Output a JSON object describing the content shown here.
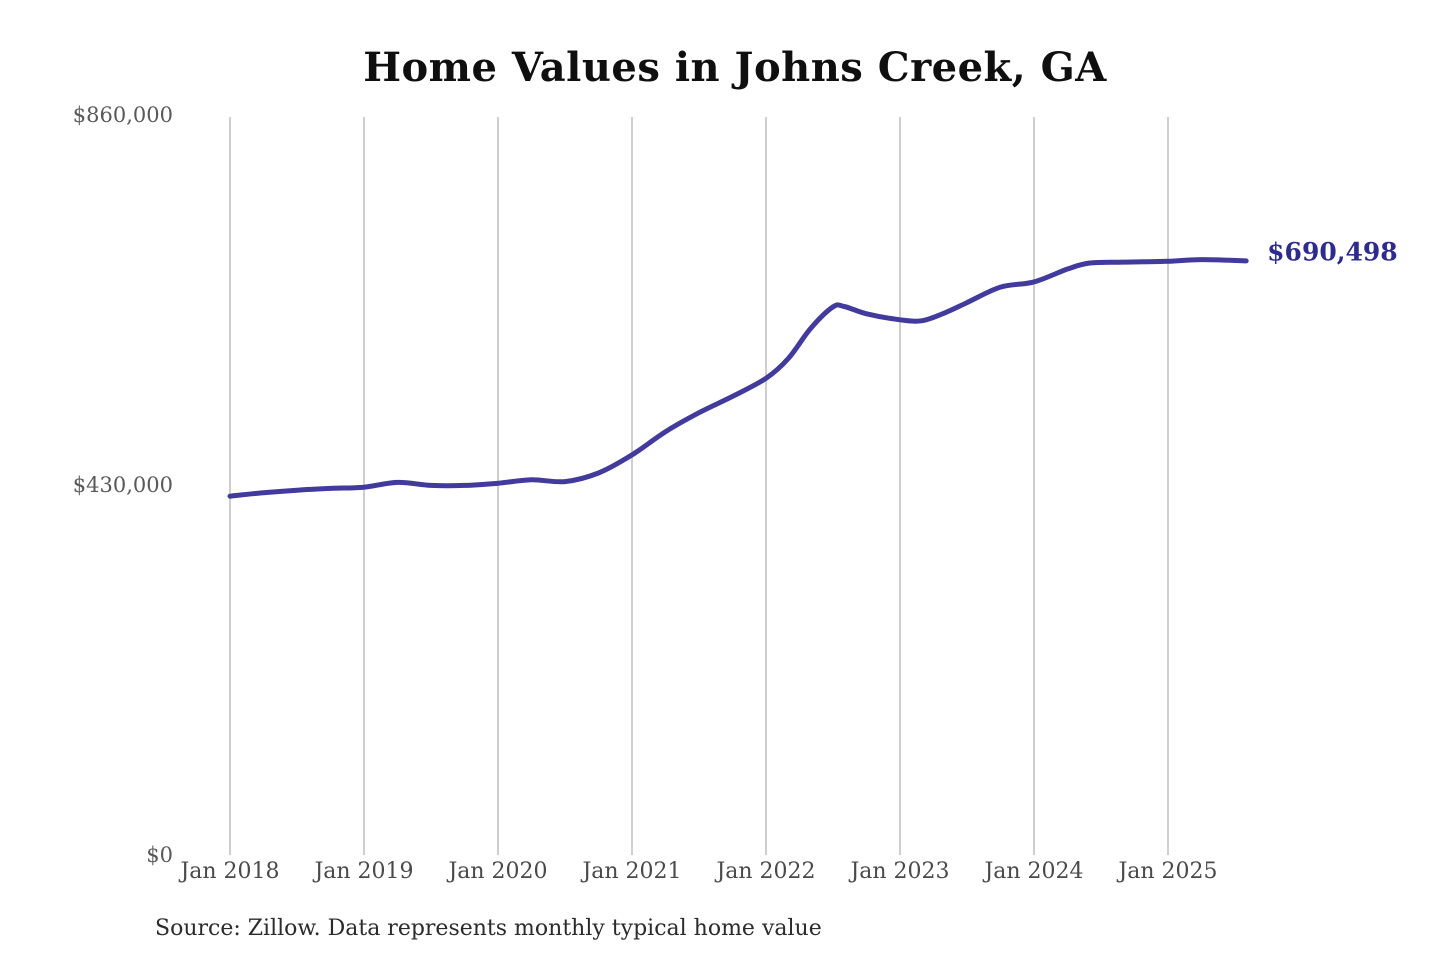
{
  "chart_data": {
    "type": "line",
    "title": "Home Values in Johns Creek, GA",
    "source_note": "Source: Zillow. Data represents monthly typical home value",
    "end_label": "$690,498",
    "end_value": 690498,
    "line_color": "#423a9c",
    "end_label_color": "#2e2b8f",
    "grid_color": "#c9c9c9",
    "y_tick_color": "#595959",
    "x_tick_color": "#4a4a4a",
    "grid": "vertical-only",
    "legend": "none",
    "ylim": [
      0,
      860000
    ],
    "x_range_months": [
      "2018-01",
      "2025-08"
    ],
    "y_ticks": [
      {
        "label": "$0",
        "value": 0
      },
      {
        "label": "$430,000",
        "value": 430000
      },
      {
        "label": "$860,000",
        "value": 860000
      }
    ],
    "x_ticks": [
      {
        "label": "Jan 2018",
        "date": "2018-01"
      },
      {
        "label": "Jan 2019",
        "date": "2019-01"
      },
      {
        "label": "Jan 2020",
        "date": "2020-01"
      },
      {
        "label": "Jan 2021",
        "date": "2021-01"
      },
      {
        "label": "Jan 2022",
        "date": "2022-01"
      },
      {
        "label": "Jan 2023",
        "date": "2023-01"
      },
      {
        "label": "Jan 2024",
        "date": "2024-01"
      },
      {
        "label": "Jan 2025",
        "date": "2025-01"
      }
    ],
    "points": [
      {
        "date": "2018-01",
        "value": 417000
      },
      {
        "date": "2018-04",
        "value": 421000
      },
      {
        "date": "2018-07",
        "value": 424000
      },
      {
        "date": "2018-10",
        "value": 426000
      },
      {
        "date": "2019-01",
        "value": 427500
      },
      {
        "date": "2019-04",
        "value": 433000
      },
      {
        "date": "2019-07",
        "value": 429500
      },
      {
        "date": "2019-10",
        "value": 429500
      },
      {
        "date": "2020-01",
        "value": 432000
      },
      {
        "date": "2020-04",
        "value": 436000
      },
      {
        "date": "2020-07",
        "value": 434000
      },
      {
        "date": "2020-10",
        "value": 444000
      },
      {
        "date": "2021-01",
        "value": 465000
      },
      {
        "date": "2021-04",
        "value": 492000
      },
      {
        "date": "2021-07",
        "value": 514000
      },
      {
        "date": "2021-10",
        "value": 533000
      },
      {
        "date": "2022-01",
        "value": 554000
      },
      {
        "date": "2022-03",
        "value": 577000
      },
      {
        "date": "2022-05",
        "value": 612000
      },
      {
        "date": "2022-07",
        "value": 637000
      },
      {
        "date": "2022-08",
        "value": 637500
      },
      {
        "date": "2022-10",
        "value": 629000
      },
      {
        "date": "2023-01",
        "value": 622000
      },
      {
        "date": "2023-03",
        "value": 621000
      },
      {
        "date": "2023-05",
        "value": 630000
      },
      {
        "date": "2023-07",
        "value": 642000
      },
      {
        "date": "2023-10",
        "value": 660000
      },
      {
        "date": "2024-01",
        "value": 666000
      },
      {
        "date": "2024-04",
        "value": 681000
      },
      {
        "date": "2024-06",
        "value": 688000
      },
      {
        "date": "2024-09",
        "value": 689000
      },
      {
        "date": "2025-01",
        "value": 690000
      },
      {
        "date": "2025-04",
        "value": 692000
      },
      {
        "date": "2025-08",
        "value": 690498
      }
    ]
  }
}
